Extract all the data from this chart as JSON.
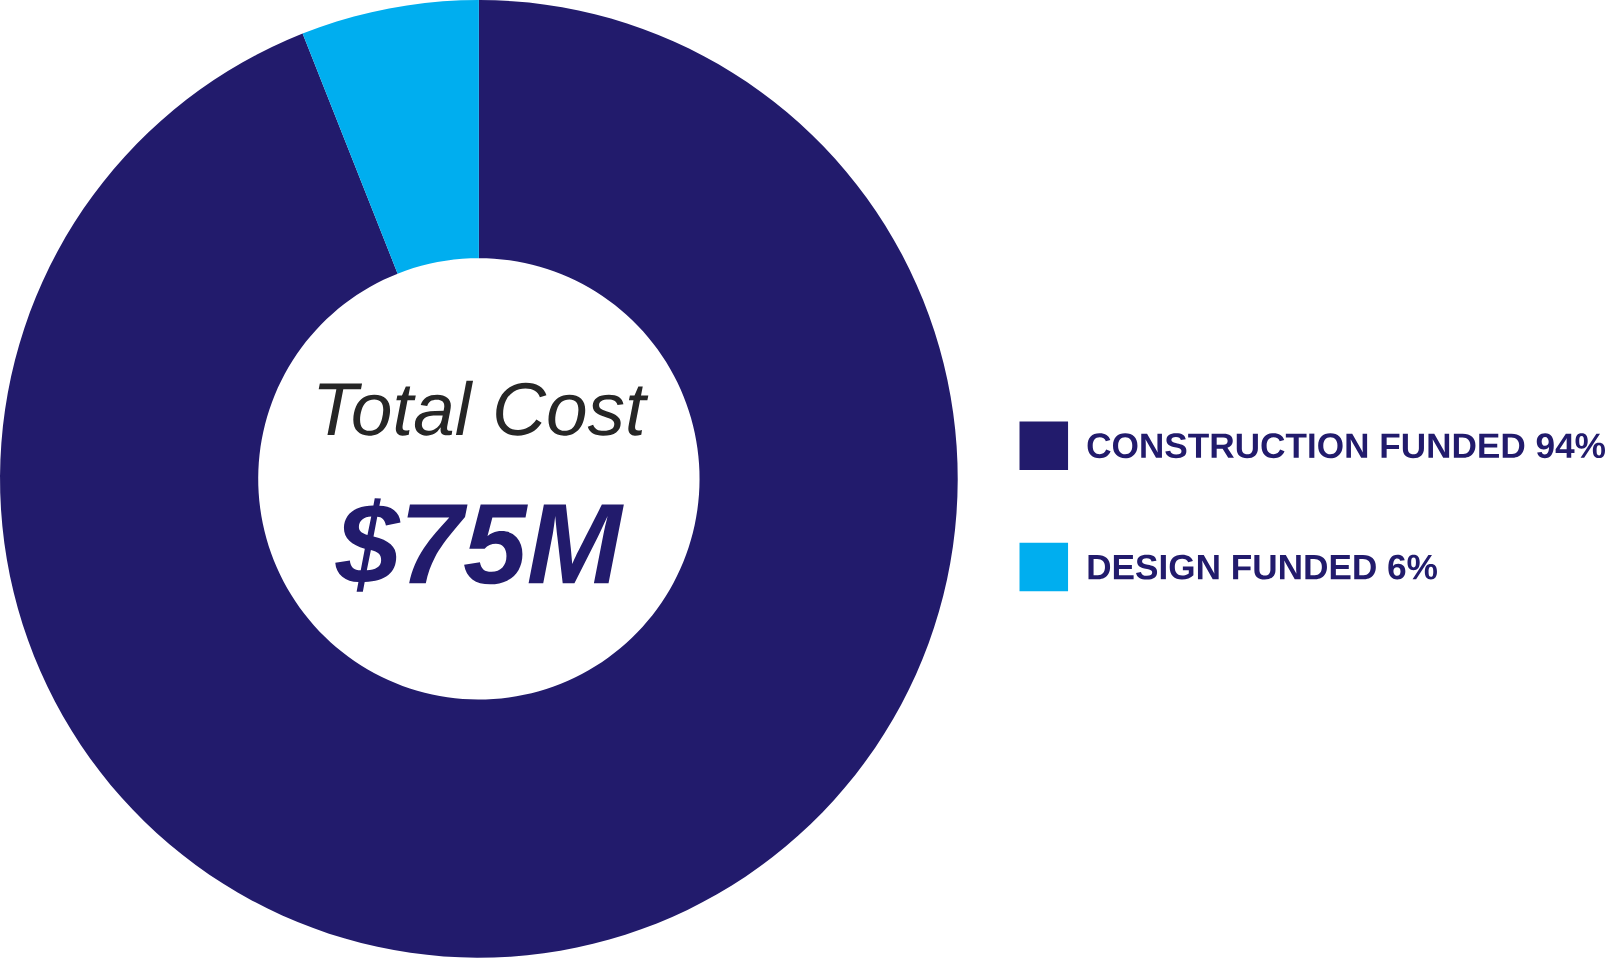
{
  "chart_data": {
    "type": "donut",
    "categories": [
      "CONSTRUCTION FUNDED 94%",
      "DESIGN FUNDED 6%"
    ],
    "values": [
      94,
      6
    ],
    "colors": [
      "#221b6c",
      "#00aeef"
    ],
    "annotations": [
      "Total Cost",
      "$75M"
    ],
    "legend": "right"
  }
}
